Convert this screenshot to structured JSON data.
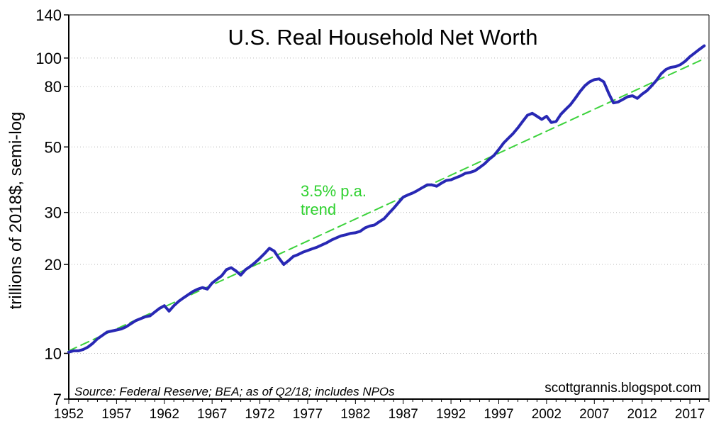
{
  "chart_data": {
    "type": "line",
    "title": "U.S. Real Household Net Worth",
    "ylabel": "trillions of 2018$, semi-log",
    "xlabel": "",
    "y_scale": "log",
    "ylim": [
      7,
      140
    ],
    "xlim": [
      1952,
      2019
    ],
    "y_ticks": [
      7,
      10,
      20,
      30,
      50,
      80,
      100,
      140
    ],
    "y_tick_labels": [
      "7",
      "10",
      "20",
      "30",
      "50",
      "80",
      "100",
      "140"
    ],
    "x_ticks": [
      1952,
      1957,
      1962,
      1967,
      1972,
      1977,
      1982,
      1987,
      1992,
      1997,
      2002,
      2007,
      2012,
      2017
    ],
    "x_tick_labels": [
      "1952",
      "1957",
      "1962",
      "1967",
      "1972",
      "1977",
      "1982",
      "1987",
      "1992",
      "1997",
      "2002",
      "2007",
      "2012",
      "2017"
    ],
    "grid": "horizontal dotted",
    "annotations": {
      "source": "Source: Federal Reserve; BEA; as of Q2/18; includes NPOs",
      "credit": "scottgrannis.blogspot.com",
      "trend_label_line1": "3.5% p.a.",
      "trend_label_line2": "trend"
    },
    "series": [
      {
        "color": "#2828b4",
        "style": "solid",
        "x": [
          1952.0,
          1952.5,
          1953.0,
          1953.5,
          1954.0,
          1954.5,
          1955.0,
          1955.5,
          1956.0,
          1956.5,
          1957.0,
          1957.5,
          1958.0,
          1958.5,
          1959.0,
          1959.5,
          1960.0,
          1960.5,
          1961.0,
          1961.5,
          1962.0,
          1962.5,
          1963.0,
          1963.5,
          1964.0,
          1964.5,
          1965.0,
          1965.5,
          1966.0,
          1966.5,
          1967.0,
          1967.5,
          1968.0,
          1968.5,
          1969.0,
          1969.5,
          1970.0,
          1970.5,
          1971.0,
          1971.5,
          1972.0,
          1972.5,
          1973.0,
          1973.5,
          1974.0,
          1974.5,
          1975.0,
          1975.5,
          1976.0,
          1976.5,
          1977.0,
          1977.5,
          1978.0,
          1978.5,
          1979.0,
          1979.5,
          1980.0,
          1980.5,
          1981.0,
          1981.5,
          1982.0,
          1982.5,
          1983.0,
          1983.5,
          1984.0,
          1984.5,
          1985.0,
          1985.5,
          1986.0,
          1986.5,
          1987.0,
          1987.5,
          1988.0,
          1988.5,
          1989.0,
          1989.5,
          1990.0,
          1990.5,
          1991.0,
          1991.5,
          1992.0,
          1992.5,
          1993.0,
          1993.5,
          1994.0,
          1994.5,
          1995.0,
          1995.5,
          1996.0,
          1996.5,
          1997.0,
          1997.5,
          1998.0,
          1998.5,
          1999.0,
          1999.5,
          2000.0,
          2000.5,
          2001.0,
          2001.5,
          2002.0,
          2002.5,
          2003.0,
          2003.5,
          2004.0,
          2004.5,
          2005.0,
          2005.5,
          2006.0,
          2006.5,
          2007.0,
          2007.5,
          2008.0,
          2008.5,
          2009.0,
          2009.5,
          2010.0,
          2010.5,
          2011.0,
          2011.5,
          2012.0,
          2012.5,
          2013.0,
          2013.5,
          2014.0,
          2014.5,
          2015.0,
          2015.5,
          2016.0,
          2016.5,
          2017.0,
          2017.5,
          2018.0,
          2018.5
        ],
        "y": [
          10.1,
          10.2,
          10.2,
          10.3,
          10.5,
          10.8,
          11.2,
          11.5,
          11.8,
          11.9,
          12.0,
          12.1,
          12.3,
          12.6,
          12.9,
          13.1,
          13.3,
          13.4,
          13.8,
          14.2,
          14.5,
          13.9,
          14.5,
          15.0,
          15.4,
          15.8,
          16.2,
          16.5,
          16.7,
          16.5,
          17.3,
          17.8,
          18.3,
          19.2,
          19.5,
          19.0,
          18.4,
          19.2,
          19.7,
          20.3,
          21.0,
          21.8,
          22.7,
          22.2,
          21.0,
          20.0,
          20.6,
          21.3,
          21.6,
          22.0,
          22.3,
          22.6,
          22.9,
          23.3,
          23.7,
          24.2,
          24.6,
          25.0,
          25.2,
          25.5,
          25.6,
          25.9,
          26.6,
          27.0,
          27.2,
          27.9,
          28.6,
          29.8,
          31.0,
          32.4,
          33.8,
          34.4,
          34.9,
          35.6,
          36.4,
          37.2,
          37.2,
          36.8,
          37.7,
          38.5,
          38.7,
          39.3,
          39.9,
          40.7,
          41.0,
          41.5,
          42.6,
          43.8,
          45.4,
          46.8,
          49.0,
          51.5,
          53.5,
          55.5,
          58.0,
          61.0,
          64.0,
          65.0,
          63.5,
          62.0,
          63.5,
          60.5,
          61.0,
          64.5,
          67.0,
          69.5,
          73.0,
          77.0,
          80.5,
          83.0,
          84.5,
          85.0,
          83.0,
          76.0,
          70.5,
          71.0,
          72.5,
          74.0,
          74.5,
          73.0,
          75.5,
          77.5,
          80.5,
          84.0,
          88.5,
          91.5,
          93.0,
          93.5,
          95.0,
          97.5,
          101.0,
          104.0,
          107.0,
          110.0
        ]
      },
      {
        "color": "#3cd23c",
        "style": "dashed",
        "x": [
          1952.0,
          2018.5
        ],
        "y": [
          10.2,
          99.5
        ]
      }
    ]
  }
}
